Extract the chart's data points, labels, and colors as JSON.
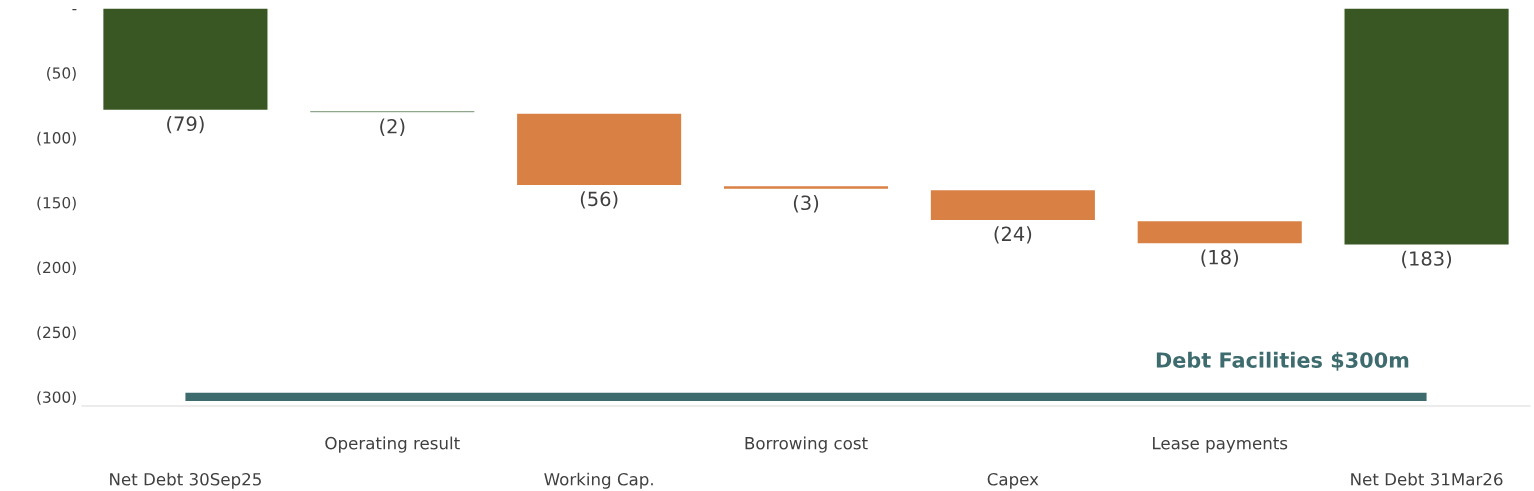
{
  "chart_data": {
    "type": "bar",
    "categories": [
      "Net Debt 30Sep25",
      "Operating result",
      "Working Cap.",
      "Borrowing cost",
      "Capex",
      "Lease payments",
      "Net Debt 31Mar26"
    ],
    "values": [
      -79,
      -2,
      -56,
      -3,
      -24,
      -18,
      -183
    ],
    "base": [
      0,
      -79,
      -81,
      -137,
      -140,
      -164,
      0
    ],
    "colors": [
      "#385723",
      "#8fa88c",
      "#d98044",
      "#d98044",
      "#d98044",
      "#d98044",
      "#385723"
    ],
    "value_labels": [
      "(79)",
      "(2)",
      "(56)",
      "(3)",
      "(24)",
      "(18)",
      "(183)"
    ],
    "ylim": [
      -307,
      0
    ],
    "yticks": [
      {
        "value": 0,
        "label": "-"
      },
      {
        "value": -50,
        "label": "(50)"
      },
      {
        "value": -100,
        "label": "(100)"
      },
      {
        "value": -150,
        "label": "(150)"
      },
      {
        "value": -200,
        "label": "(200)"
      },
      {
        "value": -250,
        "label": "(250)"
      },
      {
        "value": -300,
        "label": "(300)"
      }
    ],
    "ref_lines": [
      {
        "axis": "y",
        "value": -300,
        "label": "Debt Facilities $300m",
        "color": "#3d6b6e"
      }
    ],
    "grid": false,
    "legend": false
  }
}
